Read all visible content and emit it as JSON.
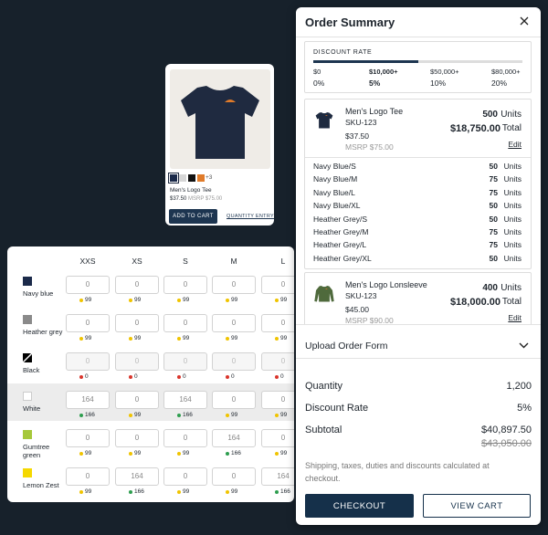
{
  "product_card": {
    "swatches": [
      "#1b2a4a",
      "#d6d6d6",
      "#111111",
      "#e07b2a"
    ],
    "more": "+3",
    "title": "Men's Logo Tee",
    "price": "$37.50",
    "msrp": "MSRP $75.00",
    "add_to_cart": "ADD TO CART",
    "quantity_entry": "QUANTITY ENTRY"
  },
  "size_grid": {
    "sizes": [
      "XXS",
      "XS",
      "S",
      "M",
      "L"
    ],
    "rows": [
      {
        "color": "Navy blue",
        "swatch": "#1b2a4a",
        "cells": [
          {
            "qty": 0,
            "stock": 99,
            "dot": "#f0c400"
          },
          {
            "qty": 0,
            "stock": 99,
            "dot": "#f0c400"
          },
          {
            "qty": 0,
            "stock": 99,
            "dot": "#f0c400"
          },
          {
            "qty": 0,
            "stock": 99,
            "dot": "#f0c400"
          },
          {
            "qty": 0,
            "stock": 99,
            "dot": "#f0c400"
          }
        ]
      },
      {
        "color": "Heather grey",
        "swatch": "#8a8a8a",
        "cells": [
          {
            "qty": 0,
            "stock": 99,
            "dot": "#f0c400"
          },
          {
            "qty": 0,
            "stock": 99,
            "dot": "#f0c400"
          },
          {
            "qty": 0,
            "stock": 99,
            "dot": "#f0c400"
          },
          {
            "qty": 0,
            "stock": 99,
            "dot": "#f0c400"
          },
          {
            "qty": 0,
            "stock": 99,
            "dot": "#f0c400"
          }
        ]
      },
      {
        "color": "Black",
        "swatch": "#000000",
        "disabled": true,
        "cells": [
          {
            "qty": 0,
            "stock": 0,
            "dot": "#d9342b"
          },
          {
            "qty": 0,
            "stock": 0,
            "dot": "#d9342b"
          },
          {
            "qty": 0,
            "stock": 0,
            "dot": "#d9342b"
          },
          {
            "qty": 0,
            "stock": 0,
            "dot": "#d9342b"
          },
          {
            "qty": 0,
            "stock": 0,
            "dot": "#d9342b"
          }
        ]
      },
      {
        "color": "White",
        "swatch": "#ffffff",
        "highlight": true,
        "cells": [
          {
            "qty": 164,
            "stock": 166,
            "dot": "#2e9e4f"
          },
          {
            "qty": 0,
            "stock": 99,
            "dot": "#f0c400"
          },
          {
            "qty": 164,
            "stock": 166,
            "dot": "#2e9e4f"
          },
          {
            "qty": 0,
            "stock": 99,
            "dot": "#f0c400"
          },
          {
            "qty": 0,
            "stock": 99,
            "dot": "#f0c400"
          }
        ]
      },
      {
        "color": "Gumtree green",
        "swatch": "#a6c83a",
        "cells": [
          {
            "qty": 0,
            "stock": 99,
            "dot": "#f0c400"
          },
          {
            "qty": 0,
            "stock": 99,
            "dot": "#f0c400"
          },
          {
            "qty": 0,
            "stock": 99,
            "dot": "#f0c400"
          },
          {
            "qty": 164,
            "stock": 166,
            "dot": "#2e9e4f"
          },
          {
            "qty": 0,
            "stock": 99,
            "dot": "#f0c400"
          }
        ]
      },
      {
        "color": "Lemon Zest",
        "swatch": "#f5d800",
        "cells": [
          {
            "qty": 0,
            "stock": 99,
            "dot": "#f0c400"
          },
          {
            "qty": 164,
            "stock": 166,
            "dot": "#2e9e4f"
          },
          {
            "qty": 0,
            "stock": 99,
            "dot": "#f0c400"
          },
          {
            "qty": 0,
            "stock": 99,
            "dot": "#f0c400"
          },
          {
            "qty": 164,
            "stock": 166,
            "dot": "#2e9e4f"
          }
        ]
      }
    ]
  },
  "order_summary": {
    "title": "Order Summary",
    "discount": {
      "label": "DISCOUNT RATE",
      "tiers": [
        {
          "threshold": "$0",
          "rate": "0%"
        },
        {
          "threshold": "$10,000+",
          "rate": "5%",
          "active": true
        },
        {
          "threshold": "$50,000+",
          "rate": "10%"
        },
        {
          "threshold": "$80,000+",
          "rate": "20%"
        }
      ]
    },
    "units_label": "Units",
    "total_label": "Total",
    "edit": "Edit",
    "items": [
      {
        "name": "Men's Logo Tee",
        "sku": "SKU-123",
        "price": "$37.50",
        "msrp": "MSRP $75.00",
        "units": 500,
        "total": "$18,750.00",
        "thumb": "#1e2a40",
        "variants": [
          {
            "name": "Navy Blue/S",
            "qty": 50
          },
          {
            "name": "Navy Blue/M",
            "qty": 75
          },
          {
            "name": "Navy Blue/L",
            "qty": 75
          },
          {
            "name": "Navy Blue/XL",
            "qty": 50
          },
          {
            "name": "Heather Grey/S",
            "qty": 50
          },
          {
            "name": "Heather Grey/M",
            "qty": 75
          },
          {
            "name": "Heather Grey/L",
            "qty": 75
          },
          {
            "name": "Heather Grey/XL",
            "qty": 50
          }
        ]
      },
      {
        "name": "Men's Logo Lonsleeve",
        "sku": "SKU-123",
        "price": "$45.00",
        "msrp": "MSRP $90.00",
        "units": 400,
        "total": "$18,000.00",
        "thumb": "#4f6a3c",
        "variants": []
      }
    ],
    "upload": "Upload Order Form",
    "rows": [
      {
        "label": "Quantity",
        "value": "1,200"
      },
      {
        "label": "Discount Rate",
        "value": "5%"
      },
      {
        "label": "Subtotal",
        "value": "$40,897.50",
        "original": "$43,050.00"
      }
    ],
    "note": "Shipping, taxes, duties and discounts calculated at checkout.",
    "checkout": "CHECKOUT",
    "view_cart": "VIEW CART"
  }
}
